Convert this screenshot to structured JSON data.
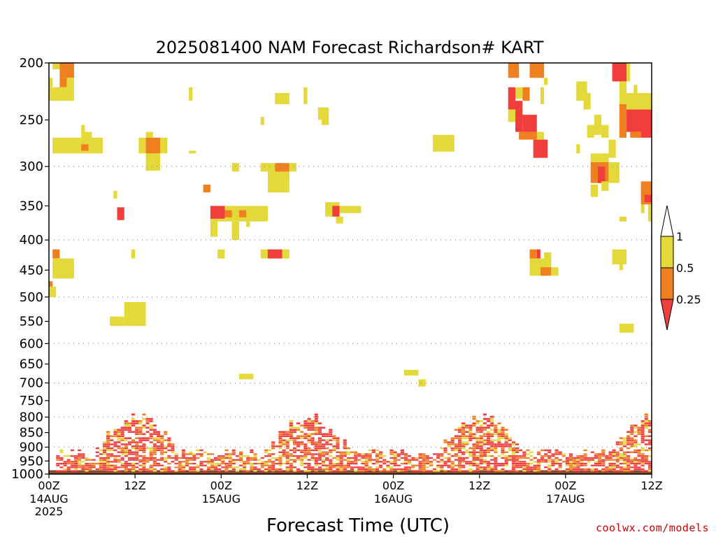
{
  "chart_data": {
    "type": "heatmap",
    "title": "2025081400 NAM Forecast Richardson# KART",
    "xlabel": "Forecast Time (UTC)",
    "ylabel": "",
    "y_axis": {
      "scale": "log",
      "inverted": true,
      "ylim": [
        1000,
        200
      ],
      "ticks": [
        200,
        250,
        300,
        350,
        400,
        450,
        500,
        550,
        600,
        650,
        700,
        750,
        800,
        850,
        900,
        950,
        1000
      ]
    },
    "x_axis": {
      "xlim_hours": [
        0,
        84
      ],
      "ticks": [
        {
          "hour": 0,
          "label": "00Z",
          "sub": [
            "14AUG",
            "2025"
          ]
        },
        {
          "hour": 12,
          "label": "12Z",
          "sub": []
        },
        {
          "hour": 24,
          "label": "00Z",
          "sub": [
            "15AUG"
          ]
        },
        {
          "hour": 36,
          "label": "12Z",
          "sub": []
        },
        {
          "hour": 48,
          "label": "00Z",
          "sub": [
            "16AUG"
          ]
        },
        {
          "hour": 60,
          "label": "12Z",
          "sub": []
        },
        {
          "hour": 72,
          "label": "00Z",
          "sub": [
            "17AUG"
          ]
        },
        {
          "hour": 84,
          "label": "12Z",
          "sub": []
        }
      ]
    },
    "grid": {
      "horizontal": "dotted",
      "levels": [
        300,
        400,
        500,
        600,
        700,
        800,
        900,
        1000
      ]
    },
    "legend": {
      "placement": "right",
      "levels": [
        {
          "label": "1",
          "color": "#ffffff"
        },
        {
          "label": "0.5",
          "color": "#e3d93a"
        },
        {
          "label": "0.25",
          "color": "#ef7f1f"
        },
        {
          "label": "",
          "color": "#f23d3d"
        }
      ]
    },
    "surface_color": "#8b4a2b",
    "colors": {
      "y": "#e3d93a",
      "o": "#ef7f1f",
      "r": "#f23d3d"
    },
    "cells": [
      [
        0.5,
        1.5,
        200,
        205,
        "y"
      ],
      [
        1.5,
        3.5,
        200,
        212,
        "o"
      ],
      [
        1.5,
        2.5,
        212,
        220,
        "o"
      ],
      [
        2.5,
        3.5,
        212,
        220,
        "y"
      ],
      [
        0,
        3.5,
        220,
        232,
        "y"
      ],
      [
        0,
        0.5,
        212,
        220,
        "y"
      ],
      [
        0.5,
        7.5,
        268,
        285,
        "y"
      ],
      [
        4.5,
        5.5,
        262,
        268,
        "y"
      ],
      [
        4.5,
        5,
        255,
        262,
        "y"
      ],
      [
        5,
        6,
        262,
        268,
        "y"
      ],
      [
        6,
        7,
        268,
        275,
        "y"
      ],
      [
        4.5,
        5.5,
        275,
        282,
        "o"
      ],
      [
        12.5,
        16.5,
        268,
        285,
        "y"
      ],
      [
        13.5,
        15.5,
        268,
        285,
        "o"
      ],
      [
        13.5,
        14.5,
        262,
        268,
        "y"
      ],
      [
        13.5,
        15.5,
        285,
        305,
        "y"
      ],
      [
        19.5,
        20,
        220,
        232,
        "y"
      ],
      [
        19.5,
        20.5,
        282,
        285,
        "y"
      ],
      [
        31.5,
        33.5,
        225,
        235,
        "y"
      ],
      [
        35.5,
        36,
        220,
        235,
        "y"
      ],
      [
        37.5,
        38.5,
        238,
        250,
        "y"
      ],
      [
        38,
        39,
        238,
        255,
        "y"
      ],
      [
        29.5,
        30,
        247,
        255,
        "y"
      ],
      [
        25.5,
        26.5,
        296,
        306,
        "y"
      ],
      [
        29.5,
        31.5,
        296,
        306,
        "y"
      ],
      [
        31.5,
        33.5,
        296,
        315,
        "o"
      ],
      [
        33.5,
        34.5,
        296,
        306,
        "y"
      ],
      [
        30.5,
        33.5,
        306,
        332,
        "y"
      ],
      [
        21.5,
        22.5,
        322,
        332,
        "o"
      ],
      [
        9,
        9.5,
        330,
        340,
        "y"
      ],
      [
        9.5,
        10.5,
        352,
        370,
        "r"
      ],
      [
        22.5,
        30.5,
        350,
        372,
        "y"
      ],
      [
        22.5,
        24.5,
        350,
        368,
        "r"
      ],
      [
        24.5,
        25.5,
        356,
        366,
        "o"
      ],
      [
        26.5,
        27.5,
        356,
        366,
        "o"
      ],
      [
        22.5,
        23.5,
        372,
        395,
        "y"
      ],
      [
        25.5,
        26.5,
        372,
        400,
        "y"
      ],
      [
        27.5,
        28,
        372,
        380,
        "y"
      ],
      [
        38.5,
        40.5,
        345,
        365,
        "y"
      ],
      [
        39.5,
        40.5,
        350,
        365,
        "r"
      ],
      [
        40.5,
        43.5,
        350,
        360,
        "y"
      ],
      [
        40,
        41,
        365,
        375,
        "y"
      ],
      [
        53.5,
        56.5,
        265,
        283,
        "y"
      ],
      [
        23.5,
        24.5,
        415,
        430,
        "y"
      ],
      [
        29.5,
        31.5,
        415,
        430,
        "y"
      ],
      [
        30.5,
        32.5,
        415,
        430,
        "r"
      ],
      [
        32.5,
        33.5,
        415,
        430,
        "y"
      ],
      [
        11.5,
        12,
        415,
        430,
        "y"
      ],
      [
        0.5,
        1.5,
        415,
        430,
        "o"
      ],
      [
        0.5,
        3.5,
        430,
        465,
        "y"
      ],
      [
        1.5,
        3.5,
        440,
        460,
        "y"
      ],
      [
        0,
        0.5,
        470,
        500,
        "o"
      ],
      [
        0,
        1,
        480,
        500,
        "y"
      ],
      [
        10.5,
        13.5,
        510,
        560,
        "y"
      ],
      [
        8.5,
        10.5,
        540,
        560,
        "y"
      ],
      [
        8.5,
        9.5,
        540,
        555,
        "y"
      ],
      [
        26.5,
        28.5,
        675,
        690,
        "y"
      ],
      [
        49.5,
        51.5,
        665,
        680,
        "y"
      ],
      [
        51.5,
        52.5,
        690,
        710,
        "y"
      ],
      [
        64,
        65.5,
        200,
        212,
        "o"
      ],
      [
        67,
        69,
        200,
        212,
        "o"
      ],
      [
        69,
        69.5,
        212,
        218,
        "y"
      ],
      [
        64,
        65,
        220,
        240,
        "r"
      ],
      [
        65,
        66,
        220,
        230,
        "y"
      ],
      [
        66,
        67,
        220,
        232,
        "o"
      ],
      [
        64,
        65,
        240,
        252,
        "y"
      ],
      [
        65,
        66,
        232,
        262,
        "r"
      ],
      [
        66,
        68,
        245,
        262,
        "r"
      ],
      [
        68.5,
        69,
        220,
        235,
        "y"
      ],
      [
        65.5,
        68.5,
        262,
        270,
        "o"
      ],
      [
        67.5,
        69.5,
        270,
        290,
        "r"
      ],
      [
        68,
        69,
        262,
        270,
        "y"
      ],
      [
        73.5,
        75,
        215,
        232,
        "y"
      ],
      [
        74.5,
        75.5,
        225,
        240,
        "y"
      ],
      [
        75,
        76,
        255,
        268,
        "y"
      ],
      [
        76,
        77,
        245,
        265,
        "y"
      ],
      [
        77,
        78,
        255,
        268,
        "y"
      ],
      [
        78.5,
        80.5,
        200,
        215,
        "r"
      ],
      [
        79.5,
        80.5,
        215,
        235,
        "y"
      ],
      [
        80.5,
        81,
        200,
        215,
        "y"
      ],
      [
        79.5,
        80.5,
        235,
        268,
        "o"
      ],
      [
        80.5,
        82.5,
        225,
        248,
        "y"
      ],
      [
        81.5,
        82,
        218,
        225,
        "y"
      ],
      [
        82.5,
        84,
        225,
        240,
        "y"
      ],
      [
        80.5,
        84,
        240,
        262,
        "r"
      ],
      [
        82.5,
        84,
        248,
        268,
        "r"
      ],
      [
        81,
        82.5,
        262,
        268,
        "o"
      ],
      [
        73.5,
        74,
        275,
        285,
        "y"
      ],
      [
        75.5,
        78,
        285,
        295,
        "y"
      ],
      [
        78,
        79,
        270,
        290,
        "y"
      ],
      [
        75.5,
        78,
        295,
        320,
        "o"
      ],
      [
        76.5,
        77.5,
        300,
        320,
        "r"
      ],
      [
        78,
        79.5,
        295,
        320,
        "y"
      ],
      [
        75.5,
        76.5,
        322,
        338,
        "y"
      ],
      [
        77,
        78,
        318,
        330,
        "y"
      ],
      [
        82.5,
        84,
        318,
        348,
        "o"
      ],
      [
        83,
        84,
        335,
        345,
        "r"
      ],
      [
        82.5,
        83,
        348,
        360,
        "y"
      ],
      [
        83.5,
        84,
        348,
        372,
        "y"
      ],
      [
        84,
        84.5,
        355,
        372,
        "r"
      ],
      [
        79.5,
        80.5,
        365,
        372,
        "y"
      ],
      [
        67,
        68,
        415,
        440,
        "o"
      ],
      [
        68,
        68.5,
        415,
        430,
        "r"
      ],
      [
        67,
        69.5,
        430,
        460,
        "y"
      ],
      [
        69,
        70,
        420,
        450,
        "y"
      ],
      [
        68.5,
        70,
        445,
        460,
        "o"
      ],
      [
        70,
        71,
        445,
        460,
        "y"
      ],
      [
        78.5,
        80.5,
        415,
        440,
        "y"
      ],
      [
        79.5,
        80,
        440,
        450,
        "y"
      ],
      [
        79.5,
        81.5,
        555,
        575,
        "y"
      ],
      [
        0,
        84,
        985,
        1000,
        "surface"
      ]
    ],
    "band": {
      "x_start": 1,
      "x_end": 84,
      "p_bottom": 998,
      "p_top": 775,
      "seed": 7
    }
  },
  "credit": "coolwx.com/models"
}
